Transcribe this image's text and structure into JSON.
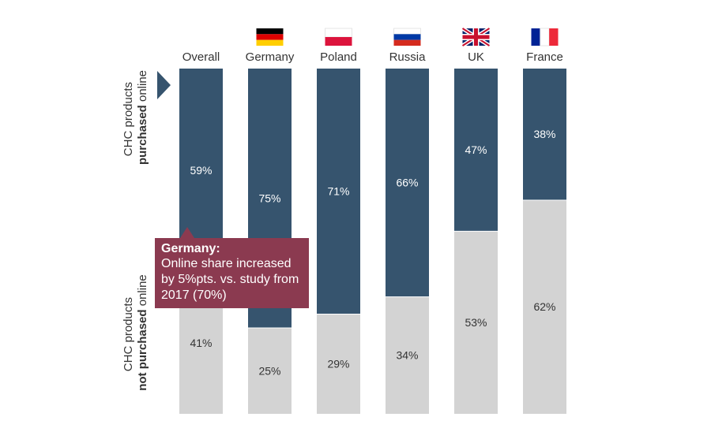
{
  "chart_data": {
    "type": "bar",
    "stacked": true,
    "percent_stacked": true,
    "categories": [
      "Overall",
      "Germany",
      "Poland",
      "Russia",
      "UK",
      "France"
    ],
    "series": [
      {
        "name": "CHC products purchased online",
        "values": [
          59,
          75,
          71,
          66,
          47,
          38
        ],
        "color": "#36546e"
      },
      {
        "name": "CHC products not purchased online",
        "values": [
          41,
          25,
          29,
          34,
          53,
          62
        ],
        "color": "#d3d3d3"
      }
    ],
    "value_labels": {
      "online": [
        "59%",
        "75%",
        "71%",
        "66%",
        "47%",
        "38%"
      ],
      "offline": [
        "41%",
        "25%",
        "29%",
        "34%",
        "53%",
        "62%"
      ]
    },
    "ylabel_online": {
      "prefix": "CHC products",
      "bold": "purchased",
      "suffix": " online"
    },
    "ylabel_offline": {
      "prefix": "CHC products",
      "bold": "not purchased",
      "suffix": " online"
    },
    "flags": [
      null,
      "germany-flag",
      "poland-flag",
      "russia-flag",
      "uk-flag",
      "france-flag"
    ],
    "grid": false,
    "legend": "none"
  },
  "callout": {
    "title": "Germany:",
    "body": "Online share increased by 5%pts. vs. study from 2017 (70%)",
    "color": "#8b3a50"
  },
  "colors": {
    "arrow": "#36546e",
    "label_on_dark": "#ffffff",
    "label_on_light": "#333333"
  }
}
